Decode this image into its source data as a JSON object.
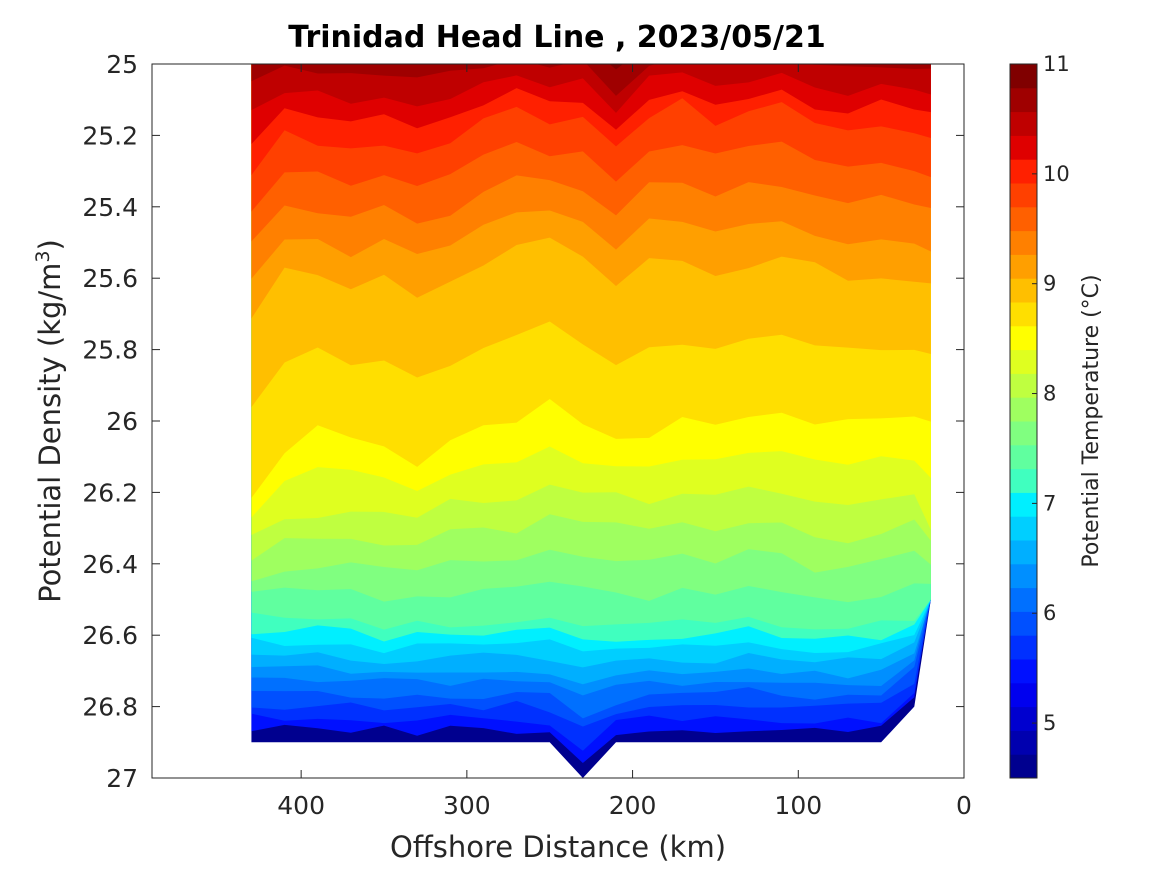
{
  "chart_data": {
    "type": "heatmap",
    "subtype": "filled-contour",
    "title": "Trinidad Head Line , 2023/05/21",
    "xlabel": "Offshore Distance (km)",
    "ylabel_main": "Potential Density (kg/m",
    "ylabel_sup": "3",
    "ylabel_close": ")",
    "xlim": [
      490,
      0
    ],
    "x_reversed": true,
    "ylim": [
      25,
      27
    ],
    "y_reversed": true,
    "x_ticks": [
      400,
      300,
      200,
      100,
      0
    ],
    "y_ticks": [
      "25",
      "25.2",
      "25.4",
      "25.6",
      "25.8",
      "26",
      "26.2",
      "26.4",
      "26.6",
      "26.8",
      "27"
    ],
    "colorbar": {
      "label": "Potential Temperature (°C)",
      "range": [
        4.5,
        11
      ],
      "ticks": [
        "5",
        "6",
        "7",
        "8",
        "9",
        "10",
        "11"
      ],
      "levels": [
        4.5,
        4.75,
        5,
        5.25,
        5.5,
        5.75,
        6,
        6.25,
        6.5,
        6.75,
        7,
        7.25,
        7.5,
        7.75,
        8,
        8.25,
        8.5,
        8.75,
        9,
        9.25,
        9.5,
        9.75,
        10,
        10.25,
        10.5,
        10.75,
        11
      ],
      "colors": [
        "#00008f",
        "#0000af",
        "#0000cf",
        "#0000ef",
        "#0010ff",
        "#0030ff",
        "#0050ff",
        "#0070ff",
        "#008fff",
        "#00afff",
        "#00cfff",
        "#00efff",
        "#40ffbf",
        "#60ff9f",
        "#80ff80",
        "#9fff60",
        "#bfff40",
        "#dfff20",
        "#ffff00",
        "#ffdf00",
        "#ffbf00",
        "#ff9f00",
        "#ff8000",
        "#ff6000",
        "#ff4000",
        "#ff2000",
        "#df0000",
        "#bf0000",
        "#9f0000",
        "#800000"
      ]
    },
    "distances_km": [
      430,
      410,
      390,
      370,
      350,
      330,
      310,
      290,
      270,
      250,
      230,
      210,
      190,
      170,
      150,
      130,
      110,
      90,
      70,
      50,
      30,
      20
    ],
    "bottom_density": [
      26.9,
      26.9,
      26.9,
      26.9,
      26.9,
      26.9,
      26.9,
      26.9,
      26.9,
      26.92,
      27.0,
      26.92,
      26.9,
      26.9,
      26.9,
      26.9,
      26.9,
      26.9,
      26.9,
      26.9,
      26.8,
      26.5
    ],
    "isotherm_density": {
      "8.5": [
        26.22,
        26.08,
        26.0,
        26.04,
        26.08,
        26.12,
        26.06,
        26.02,
        26.0,
        25.94,
        26.02,
        26.05,
        26.06,
        26.0,
        26.02,
        25.98,
        25.98,
        26.0,
        25.98,
        26.0,
        26.0,
        26.0
      ],
      "8": [
        26.32,
        26.27,
        26.27,
        26.25,
        26.26,
        26.26,
        26.22,
        26.22,
        26.22,
        26.18,
        26.2,
        26.2,
        26.22,
        26.2,
        26.22,
        26.18,
        26.2,
        26.24,
        26.25,
        26.22,
        26.2,
        26.3
      ],
      "7": [
        26.55,
        26.55,
        26.55,
        26.56,
        26.57,
        26.57,
        26.57,
        26.56,
        26.55,
        26.55,
        26.56,
        26.58,
        26.58,
        26.57,
        26.57,
        26.55,
        26.57,
        26.58,
        26.58,
        26.57,
        26.55,
        26.5
      ],
      "9": [
        25.7,
        25.58,
        25.6,
        25.62,
        25.6,
        25.64,
        25.62,
        25.56,
        25.52,
        25.5,
        25.55,
        25.62,
        25.55,
        25.55,
        25.58,
        25.56,
        25.54,
        25.57,
        25.6,
        25.6,
        25.6,
        25.62
      ],
      "10": [
        25.3,
        25.2,
        25.22,
        25.25,
        25.22,
        25.26,
        25.22,
        25.16,
        25.12,
        25.16,
        25.15,
        25.24,
        25.14,
        25.1,
        25.16,
        25.13,
        25.12,
        25.18,
        25.2,
        25.16,
        25.18,
        25.2
      ],
      "11": [
        24.95,
        24.95,
        24.95,
        24.95,
        24.95,
        24.95,
        24.95,
        24.95,
        24.95,
        24.95,
        24.95,
        25.03,
        24.95,
        24.95,
        24.95,
        24.95,
        24.95,
        24.95,
        24.95,
        24.95,
        24.95,
        24.95
      ]
    },
    "grid": false,
    "legend": "colorbar-right"
  }
}
